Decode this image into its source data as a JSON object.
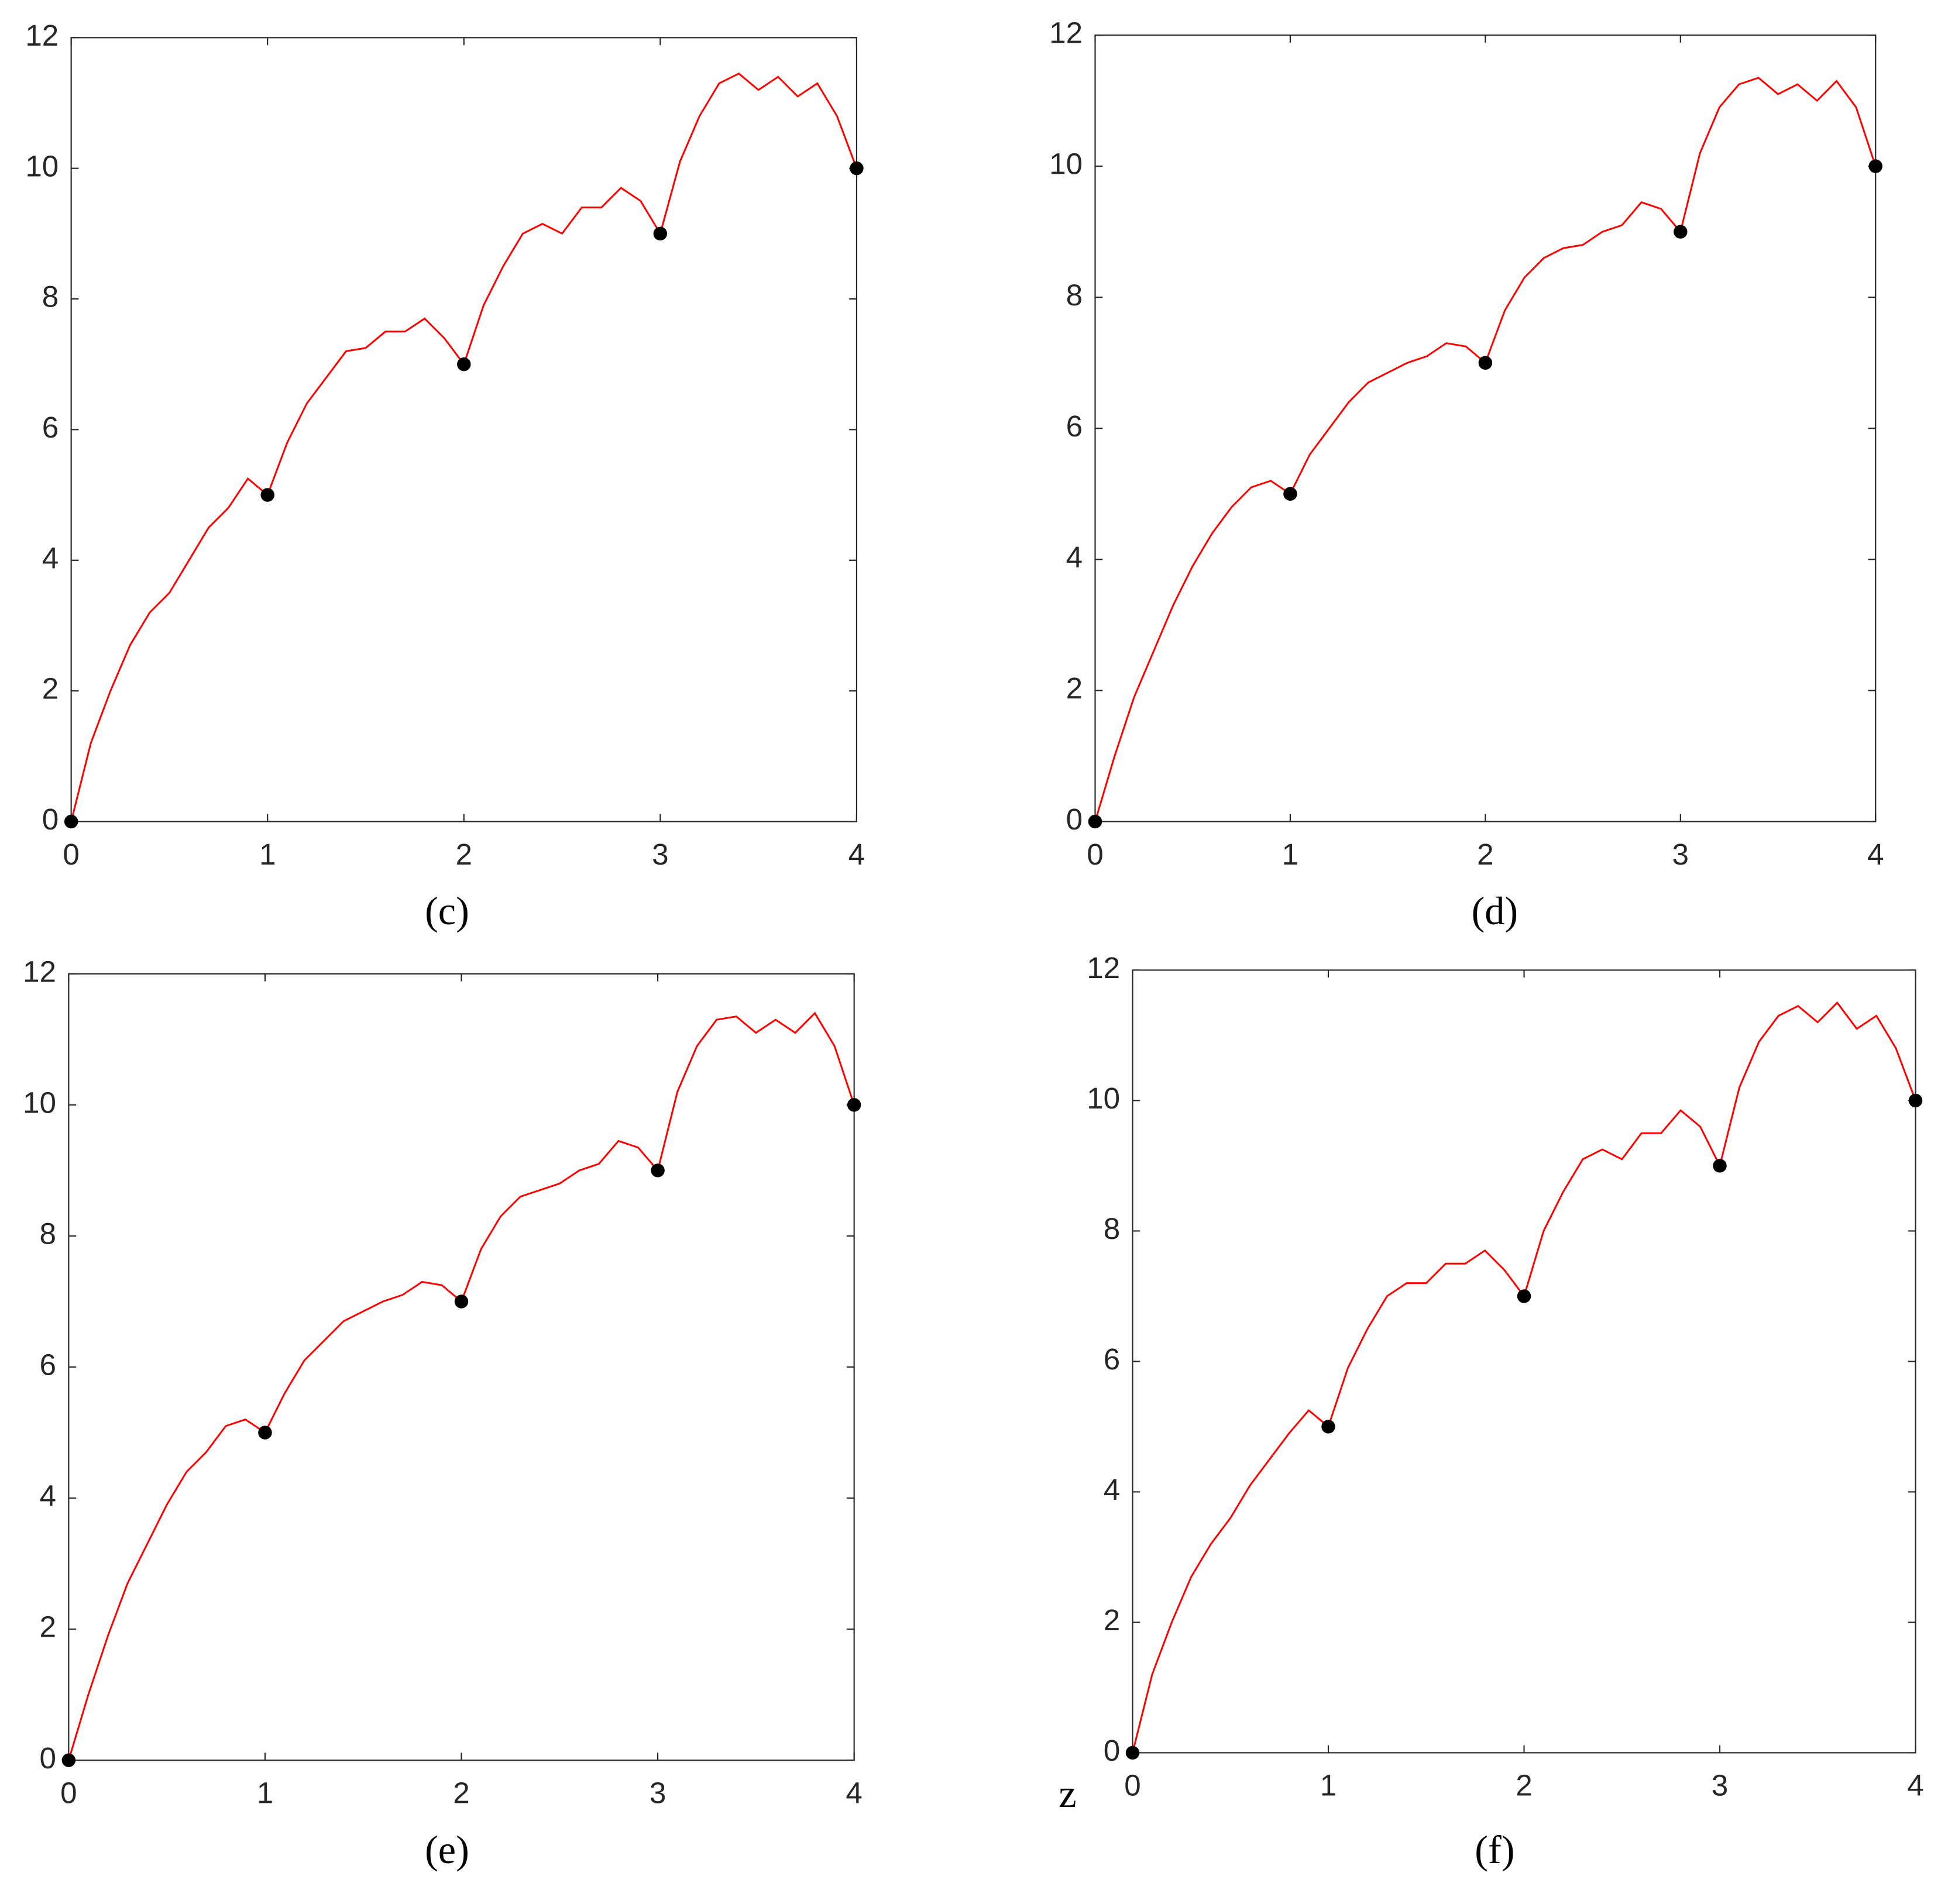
{
  "chart_data": [
    {
      "type": "line",
      "label": "(c)",
      "x": [
        0,
        0.1,
        0.2,
        0.3,
        0.4,
        0.5,
        0.6,
        0.7,
        0.8,
        0.9,
        1,
        1.1,
        1.2,
        1.3,
        1.4,
        1.5,
        1.6,
        1.7,
        1.8,
        1.9,
        2,
        2.1,
        2.2,
        2.3,
        2.4,
        2.5,
        2.6,
        2.7,
        2.8,
        2.9,
        3,
        3.1,
        3.2,
        3.3,
        3.4,
        3.5,
        3.6,
        3.7,
        3.8,
        3.9,
        4
      ],
      "series": [
        {
          "color": "#ff0000",
          "values": [
            0,
            1.2,
            2.0,
            2.7,
            3.2,
            3.5,
            4.0,
            4.5,
            4.8,
            5.25,
            5.0,
            5.8,
            6.4,
            6.8,
            7.2,
            7.25,
            7.5,
            7.5,
            7.7,
            7.4,
            7.0,
            7.9,
            8.5,
            9.0,
            9.15,
            9.0,
            9.4,
            9.4,
            9.7,
            9.5,
            9.0,
            10.1,
            10.8,
            11.3,
            11.45,
            11.2,
            11.4,
            11.1,
            11.3,
            10.8,
            10.0
          ]
        }
      ],
      "points": {
        "color": "#000000",
        "x": [
          0,
          1,
          2,
          3,
          4
        ],
        "values": [
          0,
          5,
          7,
          9,
          10
        ]
      },
      "xlim": [
        0,
        4
      ],
      "ylim": [
        0,
        12
      ],
      "xticks": [
        0,
        1,
        2,
        3,
        4
      ],
      "yticks": [
        0,
        2,
        4,
        6,
        8,
        10,
        12
      ]
    },
    {
      "type": "line",
      "label": "(d)",
      "x": [
        0,
        0.1,
        0.2,
        0.3,
        0.4,
        0.5,
        0.6,
        0.7,
        0.8,
        0.9,
        1,
        1.1,
        1.2,
        1.3,
        1.4,
        1.5,
        1.6,
        1.7,
        1.8,
        1.9,
        2,
        2.1,
        2.2,
        2.3,
        2.4,
        2.5,
        2.6,
        2.7,
        2.8,
        2.9,
        3,
        3.1,
        3.2,
        3.3,
        3.4,
        3.5,
        3.6,
        3.7,
        3.8,
        3.9,
        4
      ],
      "series": [
        {
          "color": "#ff0000",
          "values": [
            0,
            1.0,
            1.9,
            2.6,
            3.3,
            3.9,
            4.4,
            4.8,
            5.1,
            5.2,
            5.0,
            5.6,
            6.0,
            6.4,
            6.7,
            6.85,
            7.0,
            7.1,
            7.3,
            7.25,
            7.0,
            7.8,
            8.3,
            8.6,
            8.75,
            8.8,
            9.0,
            9.1,
            9.45,
            9.35,
            9.0,
            10.2,
            10.9,
            11.25,
            11.35,
            11.1,
            11.25,
            11.0,
            11.3,
            10.9,
            10.0
          ]
        }
      ],
      "points": {
        "color": "#000000",
        "x": [
          0,
          1,
          2,
          3,
          4
        ],
        "values": [
          0,
          5,
          7,
          9,
          10
        ]
      },
      "xlim": [
        0,
        4
      ],
      "ylim": [
        0,
        12
      ],
      "xticks": [
        0,
        1,
        2,
        3,
        4
      ],
      "yticks": [
        0,
        2,
        4,
        6,
        8,
        10,
        12
      ]
    },
    {
      "type": "line",
      "label": "(e)",
      "x": [
        0,
        0.1,
        0.2,
        0.3,
        0.4,
        0.5,
        0.6,
        0.7,
        0.8,
        0.9,
        1,
        1.1,
        1.2,
        1.3,
        1.4,
        1.5,
        1.6,
        1.7,
        1.8,
        1.9,
        2,
        2.1,
        2.2,
        2.3,
        2.4,
        2.5,
        2.6,
        2.7,
        2.8,
        2.9,
        3,
        3.1,
        3.2,
        3.3,
        3.4,
        3.5,
        3.6,
        3.7,
        3.8,
        3.9,
        4
      ],
      "series": [
        {
          "color": "#ff0000",
          "values": [
            0,
            1.0,
            1.9,
            2.7,
            3.3,
            3.9,
            4.4,
            4.7,
            5.1,
            5.2,
            5.0,
            5.6,
            6.1,
            6.4,
            6.7,
            6.85,
            7.0,
            7.1,
            7.3,
            7.25,
            7.0,
            7.8,
            8.3,
            8.6,
            8.7,
            8.8,
            9.0,
            9.1,
            9.45,
            9.35,
            9.0,
            10.2,
            10.9,
            11.3,
            11.35,
            11.1,
            11.3,
            11.1,
            11.4,
            10.9,
            10.0
          ]
        }
      ],
      "points": {
        "color": "#000000",
        "x": [
          0,
          1,
          2,
          3,
          4
        ],
        "values": [
          0,
          5,
          7,
          9,
          10
        ]
      },
      "xlim": [
        0,
        4
      ],
      "ylim": [
        0,
        12
      ],
      "xticks": [
        0,
        1,
        2,
        3,
        4
      ],
      "yticks": [
        0,
        2,
        4,
        6,
        8,
        10,
        12
      ]
    },
    {
      "type": "line",
      "label": "(f)",
      "annotation": "z",
      "x": [
        0,
        0.1,
        0.2,
        0.3,
        0.4,
        0.5,
        0.6,
        0.7,
        0.8,
        0.9,
        1,
        1.1,
        1.2,
        1.3,
        1.4,
        1.5,
        1.6,
        1.7,
        1.8,
        1.9,
        2,
        2.1,
        2.2,
        2.3,
        2.4,
        2.5,
        2.6,
        2.7,
        2.8,
        2.9,
        3,
        3.1,
        3.2,
        3.3,
        3.4,
        3.5,
        3.6,
        3.7,
        3.8,
        3.9,
        4
      ],
      "series": [
        {
          "color": "#ff0000",
          "values": [
            0,
            1.2,
            2.0,
            2.7,
            3.2,
            3.6,
            4.1,
            4.5,
            4.9,
            5.25,
            5.0,
            5.9,
            6.5,
            7.0,
            7.2,
            7.2,
            7.5,
            7.5,
            7.7,
            7.4,
            7.0,
            8.0,
            8.6,
            9.1,
            9.25,
            9.1,
            9.5,
            9.5,
            9.85,
            9.6,
            9.0,
            10.2,
            10.9,
            11.3,
            11.45,
            11.2,
            11.5,
            11.1,
            11.3,
            10.8,
            10.0
          ]
        }
      ],
      "points": {
        "color": "#000000",
        "x": [
          0,
          1,
          2,
          3,
          4
        ],
        "values": [
          0,
          5,
          7,
          9,
          10
        ]
      },
      "xlim": [
        0,
        4
      ],
      "ylim": [
        0,
        12
      ],
      "xticks": [
        0,
        1,
        2,
        3,
        4
      ],
      "yticks": [
        0,
        2,
        4,
        6,
        8,
        10,
        12
      ]
    }
  ]
}
